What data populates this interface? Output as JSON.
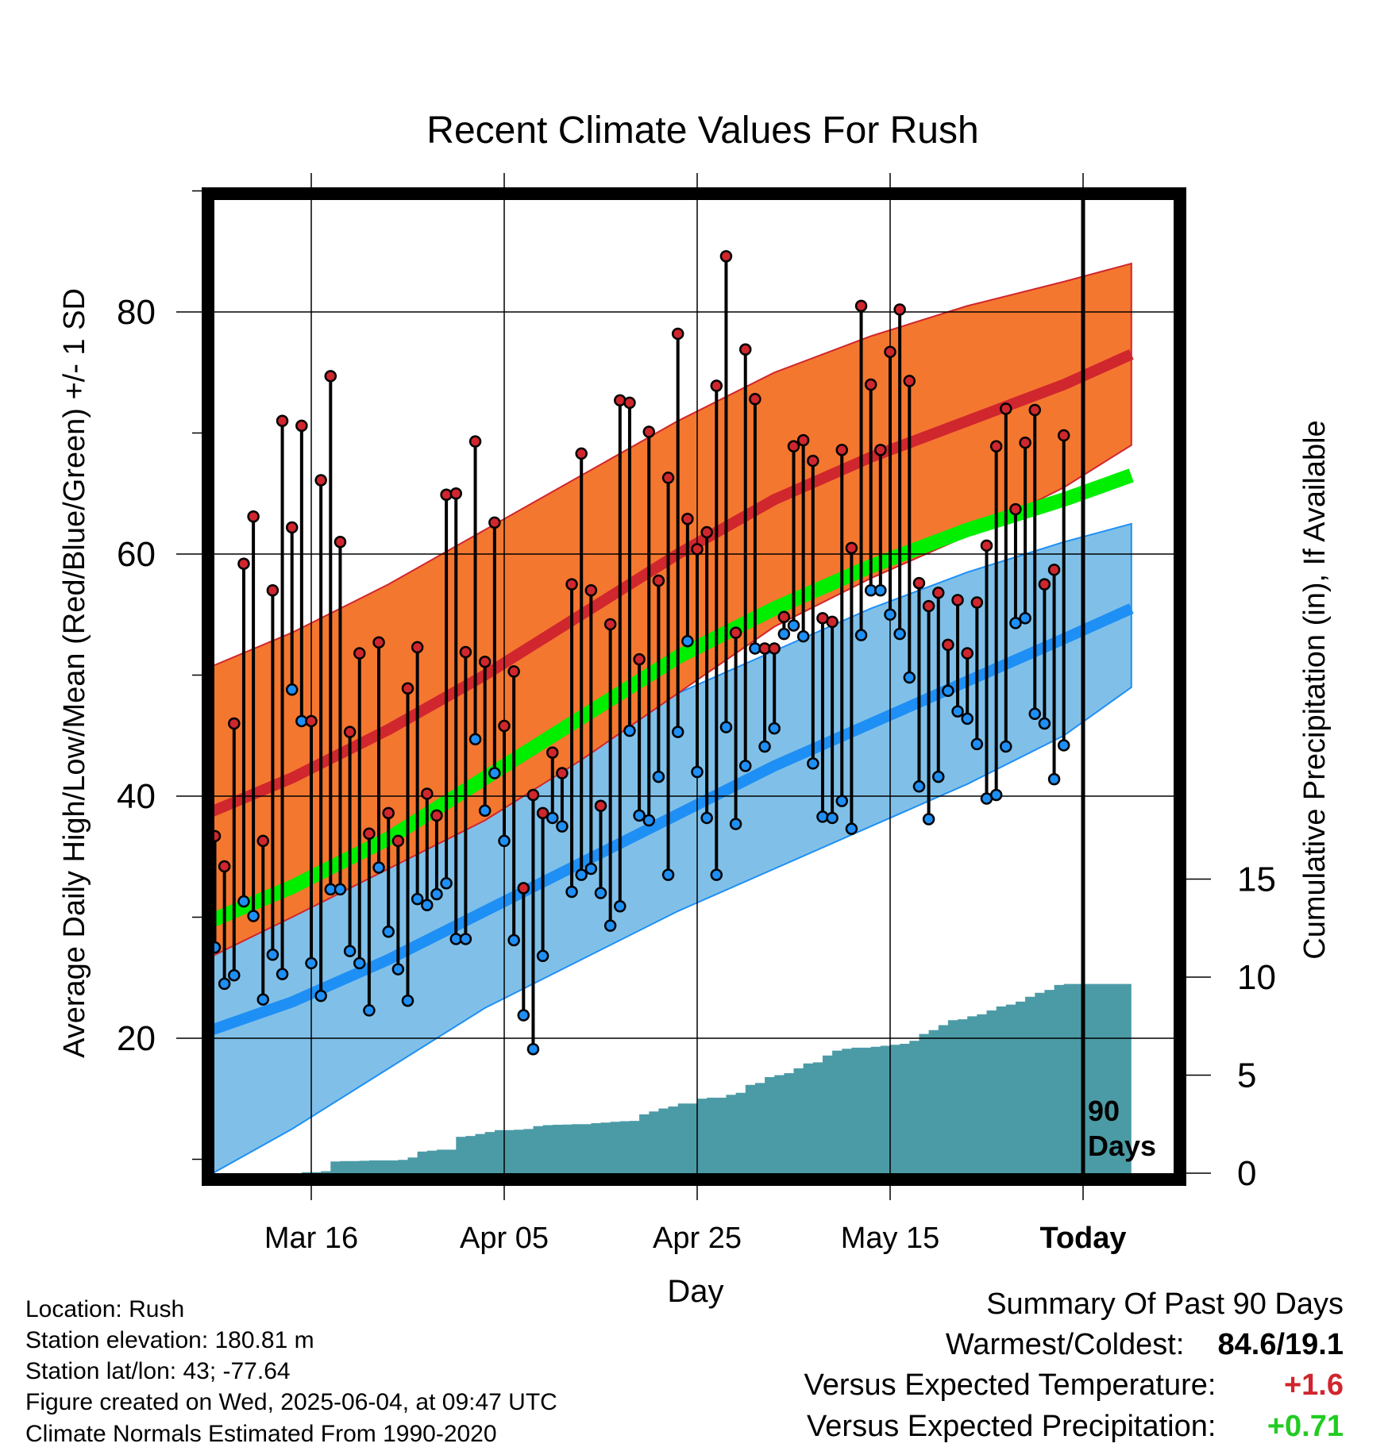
{
  "chart_data": {
    "type": "line",
    "title": "Recent Climate Values For Rush",
    "xlabel": "Day",
    "ylabel_left": "Average Daily High/Low/Mean (Red/Blue/Green) +/- 1 SD",
    "ylabel_right": "Cumulative Precipitation (in), If Available",
    "x_ticks": [
      {
        "day": 12,
        "label": "Mar 16"
      },
      {
        "day": 32,
        "label": "Apr 05"
      },
      {
        "day": 52,
        "label": "Apr 25"
      },
      {
        "day": 72,
        "label": "May 15"
      },
      {
        "day": 92,
        "label": "Today"
      }
    ],
    "x_range_days": [
      1,
      97
    ],
    "y_left_range": [
      8,
      90
    ],
    "y_left_ticks": [
      20,
      40,
      60,
      80
    ],
    "y_right_range": [
      0,
      15
    ],
    "y_right_ticks": [
      0,
      5,
      10,
      15
    ],
    "today_marker_label": "90\nDays",
    "colors": {
      "high_band": "#f4772f",
      "high_mean": "#d0262e",
      "low_band": "#80c0e8",
      "low_mean": "#1e8ff5",
      "mean": "#00ee00",
      "precip": "#4b9ba6",
      "high_dot": "#d0262e",
      "low_dot": "#1e8ff5"
    },
    "normals": {
      "days": [
        1,
        10,
        20,
        30,
        40,
        50,
        60,
        70,
        80,
        90,
        97
      ],
      "high_upper": [
        50.5,
        53.5,
        57.5,
        62,
        66.5,
        71,
        75,
        78,
        80.5,
        82.5,
        84
      ],
      "high_mean": [
        38.5,
        41.5,
        45.5,
        50,
        55,
        60,
        64.5,
        68,
        71,
        74,
        76.5
      ],
      "high_lower": [
        26.5,
        30,
        34,
        38,
        43,
        48.5,
        54,
        58,
        61.5,
        65.5,
        69
      ],
      "mean": [
        29.5,
        32.5,
        36.5,
        41.5,
        46.5,
        51.5,
        55.5,
        59,
        62,
        64.5,
        66.5
      ],
      "low_upper": [
        32,
        34,
        36.5,
        40,
        44,
        48.5,
        52,
        55.5,
        58.5,
        61,
        62.5
      ],
      "low_mean": [
        20.5,
        23,
        26.5,
        30.5,
        34.5,
        38.5,
        42.5,
        46,
        49.5,
        53,
        55.5
      ],
      "low_lower": [
        8.5,
        12.5,
        17.5,
        22.5,
        26.5,
        30.5,
        34,
        37.5,
        41,
        45,
        49
      ]
    },
    "series": [
      {
        "name": "High",
        "days": [
          1,
          2,
          3,
          4,
          5,
          6,
          7,
          8,
          9,
          10,
          11,
          12,
          13,
          14,
          15,
          16,
          17,
          18,
          19,
          20,
          21,
          22,
          23,
          24,
          25,
          26,
          27,
          28,
          29,
          30,
          31,
          32,
          33,
          34,
          35,
          36,
          37,
          38,
          39,
          40,
          41,
          42,
          43,
          44,
          45,
          46,
          47,
          48,
          49,
          50,
          51,
          52,
          53,
          54,
          55,
          56,
          57,
          58,
          59,
          60,
          61,
          62,
          63,
          64,
          65,
          66,
          67,
          68,
          69,
          70,
          71,
          72,
          73,
          74,
          75,
          76,
          77,
          78,
          79,
          80,
          81,
          82,
          83,
          84,
          85,
          86,
          87,
          88,
          89,
          90
        ],
        "values": [
          40.3,
          36.7,
          34.2,
          46,
          59.2,
          63.1,
          36.3,
          57,
          71,
          62.2,
          70.6,
          46.2,
          66.1,
          74.7,
          61,
          45.3,
          51.8,
          36.9,
          52.7,
          38.6,
          36.3,
          48.9,
          52.3,
          40.2,
          38.4,
          64.9,
          65,
          51.9,
          69.3,
          51.1,
          62.6,
          45.8,
          50.3,
          32.4,
          40.1,
          38.6,
          43.6,
          41.9,
          57.5,
          68.3,
          57,
          39.2,
          54.2,
          72.7,
          72.5,
          51.3,
          70.1,
          57.8,
          66.3,
          78.2,
          62.9,
          60.4,
          61.8,
          73.9,
          84.6,
          53.5,
          76.9,
          72.8,
          52.2,
          52.2,
          54.8,
          68.9,
          69.4,
          67.7,
          54.7,
          54.4,
          68.6,
          60.5,
          80.5,
          74,
          68.6,
          76.7,
          80.2,
          74.3,
          57.6,
          55.7,
          56.8,
          52.5,
          56.2,
          51.8,
          56,
          60.7,
          68.9,
          72,
          63.7,
          69.2,
          71.9,
          57.5,
          58.7,
          69.8
        ]
      },
      {
        "name": "Low",
        "days": [
          1,
          2,
          3,
          4,
          5,
          6,
          7,
          8,
          9,
          10,
          11,
          12,
          13,
          14,
          15,
          16,
          17,
          18,
          19,
          20,
          21,
          22,
          23,
          24,
          25,
          26,
          27,
          28,
          29,
          30,
          31,
          32,
          33,
          34,
          35,
          36,
          37,
          38,
          39,
          40,
          41,
          42,
          43,
          44,
          45,
          46,
          47,
          48,
          49,
          50,
          51,
          52,
          53,
          54,
          55,
          56,
          57,
          58,
          59,
          60,
          61,
          62,
          63,
          64,
          65,
          66,
          67,
          68,
          69,
          70,
          71,
          72,
          73,
          74,
          75,
          76,
          77,
          78,
          79,
          80,
          81,
          82,
          83,
          84,
          85,
          86,
          87,
          88,
          89,
          90
        ],
        "values": [
          27.6,
          27.5,
          24.5,
          25.2,
          31.3,
          30.1,
          23.2,
          26.9,
          25.3,
          48.8,
          46.2,
          26.2,
          23.5,
          32.3,
          32.3,
          27.2,
          26.2,
          22.3,
          34.1,
          28.8,
          25.7,
          23.1,
          31.5,
          31,
          31.9,
          32.8,
          28.2,
          28.2,
          44.7,
          38.8,
          41.9,
          36.3,
          28.1,
          21.9,
          19.1,
          26.8,
          38.2,
          37.5,
          32.1,
          33.5,
          34,
          32,
          29.3,
          30.9,
          45.4,
          38.4,
          38,
          41.6,
          33.5,
          45.3,
          52.8,
          42,
          38.2,
          33.5,
          45.7,
          37.7,
          42.5,
          52.2,
          44.1,
          45.6,
          53.4,
          54.1,
          53.2,
          42.7,
          38.3,
          38.2,
          39.6,
          37.3,
          53.3,
          57,
          57,
          55,
          53.4,
          49.8,
          40.8,
          38.1,
          41.6,
          48.7,
          47,
          46.4,
          44.3,
          39.8,
          40.1,
          44.1,
          54.3,
          54.7,
          46.8,
          46,
          41.4,
          44.2
        ]
      },
      {
        "name": "Cumulative Precipitation",
        "days": [
          1,
          10,
          11,
          12,
          13,
          14,
          15,
          16,
          17,
          18,
          19,
          20,
          21,
          22,
          23,
          24,
          25,
          26,
          27,
          28,
          29,
          30,
          31,
          32,
          33,
          34,
          35,
          36,
          37,
          38,
          39,
          40,
          41,
          42,
          43,
          44,
          45,
          46,
          47,
          48,
          49,
          50,
          51,
          52,
          53,
          54,
          55,
          56,
          57,
          58,
          59,
          60,
          61,
          62,
          63,
          64,
          65,
          66,
          67,
          68,
          69,
          70,
          71,
          72,
          73,
          74,
          75,
          76,
          77,
          78,
          79,
          80,
          81,
          82,
          83,
          84,
          85,
          86,
          87,
          88,
          89,
          90,
          97
        ],
        "values": [
          0,
          0,
          0.05,
          0.05,
          0.1,
          0.6,
          0.62,
          0.62,
          0.63,
          0.65,
          0.65,
          0.65,
          0.68,
          0.8,
          1.1,
          1.15,
          1.2,
          1.2,
          1.85,
          1.9,
          2.0,
          2.1,
          2.2,
          2.2,
          2.22,
          2.25,
          2.4,
          2.45,
          2.47,
          2.48,
          2.5,
          2.5,
          2.55,
          2.58,
          2.62,
          2.65,
          2.67,
          3.0,
          3.15,
          3.3,
          3.4,
          3.55,
          3.55,
          3.8,
          3.85,
          3.85,
          4.0,
          4.1,
          4.5,
          4.6,
          4.9,
          5.0,
          5.1,
          5.35,
          5.6,
          5.65,
          6.0,
          6.25,
          6.35,
          6.4,
          6.4,
          6.45,
          6.5,
          6.55,
          6.6,
          6.75,
          7.1,
          7.3,
          7.55,
          7.8,
          7.85,
          8.0,
          8.1,
          8.3,
          8.5,
          8.6,
          8.75,
          9.0,
          9.2,
          9.35,
          9.6,
          9.65,
          9.65
        ]
      }
    ]
  },
  "footer": {
    "location": "Location: Rush",
    "elevation": "Station elevation: 180.81 m",
    "latlon": "Station lat/lon: 43; -77.64",
    "created": "Figure created on Wed, 2025-06-04, at 09:47 UTC",
    "normals": "Climate Normals Estimated From 1990-2020"
  },
  "summary": {
    "title": "Summary Of Past 90 Days",
    "warmest_label": "Warmest/Coldest:",
    "warmest_value": "84.6/19.1",
    "temp_label": "Versus Expected Temperature:",
    "temp_value": "+1.6",
    "temp_color": "#d0262e",
    "precip_label": "Versus Expected Precipitation:",
    "precip_value": "+0.71",
    "precip_color": "#22cc22"
  }
}
